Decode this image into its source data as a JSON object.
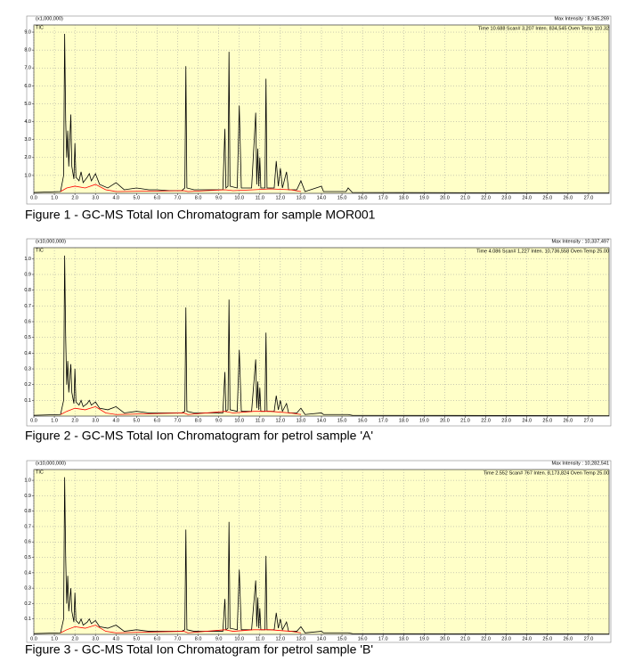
{
  "chart_data": [
    {
      "type": "line",
      "title": "Figure 1 - GC-MS Total Ion Chromatogram for sample MOR001",
      "scale_label": "(x1,000,000)",
      "trace_label": "TIC",
      "max_intensity": "Max Intensity : 8,945,269",
      "status": "Time  10.688   Scan# 3,207   Inten.    834,545   Oven Temp 110.32",
      "grid": true,
      "background": "#ffffc8",
      "xlim": [
        0,
        28
      ],
      "ylim": [
        0,
        9.4
      ],
      "xticks": [
        {
          "value": 0,
          "label": "0.0"
        },
        {
          "value": 1,
          "label": "1.0"
        },
        {
          "value": 2,
          "label": "2.0"
        },
        {
          "value": 3,
          "label": "3.0"
        },
        {
          "value": 4,
          "label": "4.0"
        },
        {
          "value": 5,
          "label": "5.0"
        },
        {
          "value": 6,
          "label": "6.0"
        },
        {
          "value": 7,
          "label": "7.0"
        },
        {
          "value": 8,
          "label": "8.0"
        },
        {
          "value": 9,
          "label": "9.0"
        },
        {
          "value": 10,
          "label": "10.0"
        },
        {
          "value": 11,
          "label": "11.0"
        },
        {
          "value": 12,
          "label": "12.0"
        },
        {
          "value": 13,
          "label": "13.0"
        },
        {
          "value": 14,
          "label": "14.0"
        },
        {
          "value": 15,
          "label": "15.0"
        },
        {
          "value": 16,
          "label": "16.0"
        },
        {
          "value": 17,
          "label": "17.0"
        },
        {
          "value": 18,
          "label": "18.0"
        },
        {
          "value": 19,
          "label": "19.0"
        },
        {
          "value": 20,
          "label": "20.0"
        },
        {
          "value": 21,
          "label": "21.0"
        },
        {
          "value": 22,
          "label": "22.0"
        },
        {
          "value": 23,
          "label": "23.0"
        },
        {
          "value": 24,
          "label": "24.0"
        },
        {
          "value": 25,
          "label": "25.0"
        },
        {
          "value": 26,
          "label": "26.0"
        },
        {
          "value": 27,
          "label": "27.0"
        }
      ],
      "yticks": [
        {
          "value": 1,
          "label": "1.0"
        },
        {
          "value": 2,
          "label": "2.0"
        },
        {
          "value": 3,
          "label": "3.0"
        },
        {
          "value": 4,
          "label": "4.0"
        },
        {
          "value": 5,
          "label": "5.0"
        },
        {
          "value": 6,
          "label": "6.0"
        },
        {
          "value": 7,
          "label": "7.0"
        },
        {
          "value": 8,
          "label": "8.0"
        },
        {
          "value": 9,
          "label": "9.0"
        }
      ],
      "series": [
        {
          "color": "#000000",
          "x": [
            0.0,
            1.3,
            1.45,
            1.5,
            1.55,
            1.6,
            1.65,
            1.7,
            1.8,
            1.85,
            1.95,
            2.0,
            2.05,
            2.2,
            2.3,
            2.4,
            2.6,
            2.7,
            2.8,
            3.0,
            3.2,
            3.6,
            4.0,
            4.4,
            5.0,
            5.6,
            6.0,
            6.6,
            7.2,
            7.35,
            7.4,
            7.45,
            7.8,
            8.5,
            9.2,
            9.3,
            9.35,
            9.45,
            9.5,
            9.55,
            9.9,
            10.0,
            10.1,
            10.6,
            10.8,
            10.85,
            10.9,
            10.95,
            11.0,
            11.05,
            11.25,
            11.3,
            11.35,
            11.7,
            11.8,
            11.9,
            12.0,
            12.1,
            12.3,
            12.4,
            12.8,
            13.0,
            13.2,
            14.0,
            14.1,
            15.2,
            15.3,
            15.5,
            28.0
          ],
          "values": [
            0.05,
            0.1,
            1.0,
            8.9,
            4.1,
            2.0,
            3.5,
            1.5,
            4.4,
            1.5,
            0.8,
            2.8,
            0.9,
            0.7,
            1.2,
            0.6,
            0.9,
            1.1,
            0.7,
            1.1,
            0.5,
            0.3,
            0.6,
            0.2,
            0.3,
            0.2,
            0.2,
            0.15,
            0.15,
            0.3,
            7.1,
            0.3,
            0.2,
            0.2,
            0.2,
            3.6,
            0.3,
            0.4,
            7.9,
            0.4,
            0.3,
            4.9,
            0.3,
            0.3,
            4.5,
            0.5,
            2.5,
            0.4,
            2.0,
            0.3,
            0.3,
            6.4,
            0.3,
            0.3,
            1.8,
            0.4,
            1.4,
            0.3,
            1.2,
            0.2,
            0.2,
            0.7,
            0.1,
            0.4,
            0.1,
            0.1,
            0.3,
            0.05,
            0.02
          ]
        },
        {
          "color": "#ff0000",
          "x": [
            1.3,
            1.6,
            2.0,
            2.5,
            3.0,
            3.5,
            4.0,
            7.3,
            7.5,
            9.3,
            9.7,
            10.7,
            11.5,
            12.5,
            13.0
          ],
          "values": [
            0.1,
            0.3,
            0.4,
            0.3,
            0.5,
            0.2,
            0.1,
            0.15,
            0.1,
            0.2,
            0.15,
            0.2,
            0.25,
            0.2,
            0.1
          ]
        }
      ]
    },
    {
      "type": "line",
      "title": "Figure 2 - GC-MS Total Ion Chromatogram for petrol sample 'A'",
      "scale_label": "(x10,000,000)",
      "trace_label": "TIC",
      "max_intensity": "Max Intensity : 10,337,497",
      "status": "Time   4.086   Scan# 1,227   Inten.  10,736,558   Oven Temp 25.00",
      "grid": true,
      "background": "#ffffc8",
      "xlim": [
        0,
        28
      ],
      "ylim": [
        0,
        1.07
      ],
      "xticks": [
        {
          "value": 0,
          "label": "0.0"
        },
        {
          "value": 1,
          "label": "1.0"
        },
        {
          "value": 2,
          "label": "2.0"
        },
        {
          "value": 3,
          "label": "3.0"
        },
        {
          "value": 4,
          "label": "4.0"
        },
        {
          "value": 5,
          "label": "5.0"
        },
        {
          "value": 6,
          "label": "6.0"
        },
        {
          "value": 7,
          "label": "7.0"
        },
        {
          "value": 8,
          "label": "8.0"
        },
        {
          "value": 9,
          "label": "9.0"
        },
        {
          "value": 10,
          "label": "10.0"
        },
        {
          "value": 11,
          "label": "11.0"
        },
        {
          "value": 12,
          "label": "12.0"
        },
        {
          "value": 13,
          "label": "13.0"
        },
        {
          "value": 14,
          "label": "14.0"
        },
        {
          "value": 15,
          "label": "15.0"
        },
        {
          "value": 16,
          "label": "16.0"
        },
        {
          "value": 17,
          "label": "17.0"
        },
        {
          "value": 18,
          "label": "18.0"
        },
        {
          "value": 19,
          "label": "19.0"
        },
        {
          "value": 20,
          "label": "20.0"
        },
        {
          "value": 21,
          "label": "21.0"
        },
        {
          "value": 22,
          "label": "22.0"
        },
        {
          "value": 23,
          "label": "23.0"
        },
        {
          "value": 24,
          "label": "24.0"
        },
        {
          "value": 25,
          "label": "25.0"
        },
        {
          "value": 26,
          "label": "26.0"
        },
        {
          "value": 27,
          "label": "27.0"
        }
      ],
      "yticks": [
        0.1,
        0.2,
        0.3,
        0.4,
        0.5,
        0.6,
        0.7,
        0.8,
        0.9,
        {
          "value": 1,
          "label": "1.0"
        }
      ],
      "series": [
        {
          "color": "#000000",
          "x": [
            0.0,
            1.3,
            1.45,
            1.5,
            1.55,
            1.6,
            1.65,
            1.7,
            1.8,
            1.85,
            1.95,
            2.0,
            2.05,
            2.2,
            2.3,
            2.4,
            2.6,
            2.7,
            2.8,
            3.0,
            3.2,
            3.6,
            4.0,
            4.4,
            5.0,
            5.6,
            6.0,
            6.6,
            7.2,
            7.35,
            7.4,
            7.45,
            7.8,
            8.5,
            9.2,
            9.3,
            9.35,
            9.45,
            9.5,
            9.55,
            9.9,
            10.0,
            10.1,
            10.6,
            10.8,
            10.85,
            10.9,
            10.95,
            11.0,
            11.05,
            11.25,
            11.3,
            11.35,
            11.7,
            11.8,
            11.9,
            12.0,
            12.1,
            12.3,
            12.4,
            12.8,
            13.0,
            13.2,
            14.0,
            14.1,
            15.2,
            15.3,
            15.5,
            28.0
          ],
          "values": [
            0.005,
            0.01,
            0.1,
            1.02,
            0.5,
            0.2,
            0.35,
            0.15,
            0.33,
            0.15,
            0.08,
            0.3,
            0.09,
            0.07,
            0.1,
            0.06,
            0.08,
            0.1,
            0.07,
            0.09,
            0.05,
            0.04,
            0.06,
            0.02,
            0.03,
            0.02,
            0.02,
            0.02,
            0.02,
            0.03,
            0.69,
            0.03,
            0.02,
            0.02,
            0.02,
            0.28,
            0.03,
            0.04,
            0.74,
            0.04,
            0.03,
            0.42,
            0.03,
            0.03,
            0.36,
            0.05,
            0.22,
            0.04,
            0.18,
            0.03,
            0.03,
            0.53,
            0.03,
            0.03,
            0.13,
            0.04,
            0.1,
            0.03,
            0.08,
            0.02,
            0.02,
            0.05,
            0.01,
            0.02,
            0.01,
            0.01,
            0.01,
            0.005,
            0.002
          ]
        },
        {
          "color": "#ff0000",
          "x": [
            1.3,
            1.6,
            2.0,
            2.5,
            3.0,
            3.5,
            4.0,
            7.3,
            7.5,
            9.3,
            9.7,
            10.7,
            11.5,
            12.5,
            13.0
          ],
          "values": [
            0.01,
            0.03,
            0.05,
            0.04,
            0.06,
            0.02,
            0.01,
            0.02,
            0.01,
            0.03,
            0.02,
            0.03,
            0.03,
            0.02,
            0.01
          ]
        }
      ]
    },
    {
      "type": "line",
      "title": "Figure 3 - GC-MS Total Ion Chromatogram for petrol sample 'B'",
      "scale_label": "(x10,000,000)",
      "trace_label": "TIC",
      "max_intensity": "Max Intensity : 10,282,541",
      "status": "Time   2.552   Scan#   767   Inten.   8,173,824   Oven Temp 25.00",
      "grid": true,
      "background": "#ffffc8",
      "xlim": [
        0,
        28
      ],
      "ylim": [
        0,
        1.07
      ],
      "xticks": [
        {
          "value": 0,
          "label": "0.0"
        },
        {
          "value": 1,
          "label": "1.0"
        },
        {
          "value": 2,
          "label": "2.0"
        },
        {
          "value": 3,
          "label": "3.0"
        },
        {
          "value": 4,
          "label": "4.0"
        },
        {
          "value": 5,
          "label": "5.0"
        },
        {
          "value": 6,
          "label": "6.0"
        },
        {
          "value": 7,
          "label": "7.0"
        },
        {
          "value": 8,
          "label": "8.0"
        },
        {
          "value": 9,
          "label": "9.0"
        },
        {
          "value": 10,
          "label": "10.0"
        },
        {
          "value": 11,
          "label": "11.0"
        },
        {
          "value": 12,
          "label": "12.0"
        },
        {
          "value": 13,
          "label": "13.0"
        },
        {
          "value": 14,
          "label": "14.0"
        },
        {
          "value": 15,
          "label": "15.0"
        },
        {
          "value": 16,
          "label": "16.0"
        },
        {
          "value": 17,
          "label": "17.0"
        },
        {
          "value": 18,
          "label": "18.0"
        },
        {
          "value": 19,
          "label": "19.0"
        },
        {
          "value": 20,
          "label": "20.0"
        },
        {
          "value": 21,
          "label": "21.0"
        },
        {
          "value": 22,
          "label": "22.0"
        },
        {
          "value": 23,
          "label": "23.0"
        },
        {
          "value": 24,
          "label": "24.0"
        },
        {
          "value": 25,
          "label": "25.0"
        },
        {
          "value": 26,
          "label": "26.0"
        },
        {
          "value": 27,
          "label": "27.0"
        }
      ],
      "yticks": [
        0.1,
        0.2,
        0.3,
        0.4,
        0.5,
        0.6,
        0.7,
        0.8,
        0.9,
        {
          "value": 1,
          "label": "1.0"
        }
      ],
      "series": [
        {
          "color": "#000000",
          "x": [
            0.0,
            1.3,
            1.45,
            1.5,
            1.55,
            1.6,
            1.65,
            1.7,
            1.8,
            1.85,
            1.95,
            2.0,
            2.05,
            2.2,
            2.3,
            2.4,
            2.6,
            2.7,
            2.8,
            3.0,
            3.2,
            3.6,
            4.0,
            4.4,
            5.0,
            5.6,
            6.0,
            6.6,
            7.2,
            7.35,
            7.4,
            7.45,
            7.8,
            8.5,
            9.2,
            9.3,
            9.35,
            9.45,
            9.5,
            9.55,
            9.9,
            10.0,
            10.1,
            10.6,
            10.8,
            10.85,
            10.9,
            10.95,
            11.0,
            11.05,
            11.25,
            11.3,
            11.35,
            11.7,
            11.8,
            11.9,
            12.0,
            12.1,
            12.3,
            12.4,
            12.8,
            13.0,
            13.2,
            14.0,
            14.1,
            15.2,
            15.3,
            15.5,
            28.0
          ],
          "values": [
            0.005,
            0.01,
            0.1,
            1.02,
            0.5,
            0.2,
            0.38,
            0.15,
            0.3,
            0.15,
            0.08,
            0.27,
            0.09,
            0.07,
            0.1,
            0.06,
            0.08,
            0.1,
            0.07,
            0.09,
            0.05,
            0.04,
            0.06,
            0.02,
            0.03,
            0.02,
            0.02,
            0.02,
            0.02,
            0.03,
            0.68,
            0.03,
            0.02,
            0.02,
            0.02,
            0.23,
            0.03,
            0.04,
            0.73,
            0.04,
            0.03,
            0.42,
            0.03,
            0.03,
            0.35,
            0.05,
            0.24,
            0.04,
            0.17,
            0.03,
            0.03,
            0.51,
            0.03,
            0.03,
            0.14,
            0.04,
            0.1,
            0.03,
            0.08,
            0.02,
            0.02,
            0.05,
            0.01,
            0.02,
            0.01,
            0.01,
            0.01,
            0.005,
            0.002
          ]
        },
        {
          "color": "#ff0000",
          "x": [
            1.3,
            1.6,
            2.0,
            2.5,
            3.0,
            3.5,
            4.0,
            7.3,
            7.5,
            9.3,
            9.7,
            10.7,
            11.5,
            12.5,
            13.0
          ],
          "values": [
            0.01,
            0.03,
            0.05,
            0.04,
            0.06,
            0.02,
            0.01,
            0.02,
            0.01,
            0.03,
            0.02,
            0.03,
            0.03,
            0.02,
            0.01
          ]
        }
      ]
    }
  ]
}
